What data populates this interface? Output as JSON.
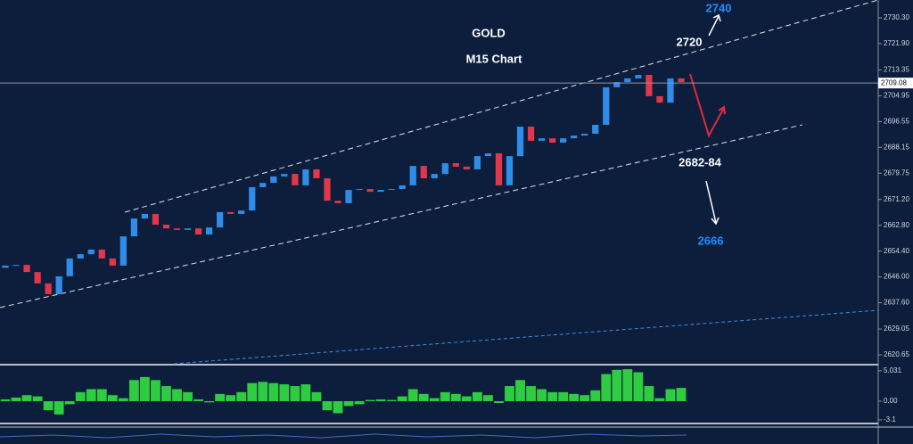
{
  "chart_data": [
    {
      "type": "candlestick",
      "title": "GOLD",
      "subtitle": "M15 Chart",
      "annotations": [
        "2740",
        "2720",
        "2682-84",
        "2666"
      ],
      "current_price": 2709.08,
      "up_color": "#2f8ce8",
      "down_color": "#e2374a",
      "open": [
        2649.0,
        2649.7,
        2649.9,
        2647.6,
        2643.9,
        2640.4,
        2646.2,
        2652.0,
        2653.4,
        2654.9,
        2652.0,
        2649.7,
        2659.2,
        2665.0,
        2666.5,
        2663.0,
        2661.8,
        2661.3,
        2661.8,
        2659.8,
        2662.1,
        2667.1,
        2666.5,
        2667.6,
        2675.2,
        2676.6,
        2678.7,
        2679.5,
        2675.8,
        2681.0,
        2678.1,
        2670.8,
        2670.0,
        2674.3,
        2674.6,
        2673.7,
        2674.3,
        2674.6,
        2675.8,
        2682.1,
        2678.1,
        2679.5,
        2683.0,
        2681.9,
        2681.0,
        2685.3,
        2686.2,
        2675.8,
        2685.3,
        2694.9,
        2690.3,
        2691.1,
        2689.7,
        2691.1,
        2692.0,
        2692.6,
        2695.5,
        2707.7,
        2709.4,
        2710.6,
        2711.7,
        2704.8,
        2702.7,
        2710.6
      ],
      "close": [
        2649.7,
        2649.9,
        2647.6,
        2643.9,
        2640.4,
        2646.2,
        2652.0,
        2653.4,
        2654.9,
        2652.0,
        2649.7,
        2659.2,
        2665.0,
        2666.5,
        2663.0,
        2661.8,
        2661.3,
        2661.8,
        2659.8,
        2662.1,
        2667.1,
        2666.5,
        2667.6,
        2675.2,
        2676.6,
        2678.7,
        2679.5,
        2675.8,
        2681.0,
        2678.1,
        2670.8,
        2670.0,
        2674.3,
        2674.6,
        2673.7,
        2674.3,
        2674.6,
        2675.8,
        2682.1,
        2678.1,
        2679.5,
        2683.0,
        2681.9,
        2681.0,
        2685.3,
        2686.2,
        2675.8,
        2685.3,
        2694.9,
        2690.3,
        2691.1,
        2689.7,
        2691.1,
        2692.0,
        2692.6,
        2695.5,
        2707.7,
        2709.4,
        2710.6,
        2711.7,
        2704.8,
        2702.7,
        2710.6,
        2709.4
      ],
      "ylim": [
        2617.75,
        2736.1
      ],
      "yticks": [
        {
          "value": 2730.3,
          "label": "2730.30"
        },
        {
          "value": 2721.9,
          "label": "2721.90"
        },
        2713.35,
        2704.95,
        2696.55,
        2688.15,
        2679.75,
        {
          "value": 2671.2,
          "label": "2671.20"
        },
        {
          "value": 2662.8,
          "label": "2662.80"
        },
        {
          "value": 2654.4,
          "label": "2654.40"
        },
        {
          "value": 2646,
          "label": "2646.00"
        },
        {
          "value": 2637.6,
          "label": "2637.60"
        },
        2629.05,
        2620.65
      ]
    },
    {
      "type": "bar",
      "color": "#2ecc40",
      "values": [
        0.3,
        0.6,
        1.0,
        0.8,
        -1.5,
        -2.2,
        -0.5,
        1.5,
        2.0,
        2.0,
        1.0,
        0.5,
        3.5,
        4.0,
        3.5,
        2.5,
        2.0,
        1.5,
        0.3,
        -0.2,
        1.2,
        1.0,
        1.5,
        3.0,
        3.2,
        3.0,
        2.8,
        2.5,
        2.8,
        1.5,
        -1.5,
        -2.0,
        -0.8,
        -0.5,
        0.2,
        0.3,
        0.2,
        0.8,
        2.0,
        1.2,
        0.5,
        1.5,
        1.2,
        0.8,
        1.5,
        1.0,
        -0.3,
        2.5,
        3.5,
        2.5,
        2.0,
        1.5,
        1.5,
        1.2,
        1.0,
        1.8,
        4.5,
        5.2,
        5.3,
        4.8,
        2.5,
        0.5,
        2.0,
        2.2
      ],
      "ylim": [
        -3.55,
        5.91
      ],
      "yticks": [
        5.031,
        {
          "value": 0,
          "label": "0.00"
        },
        -3.1
      ]
    }
  ]
}
